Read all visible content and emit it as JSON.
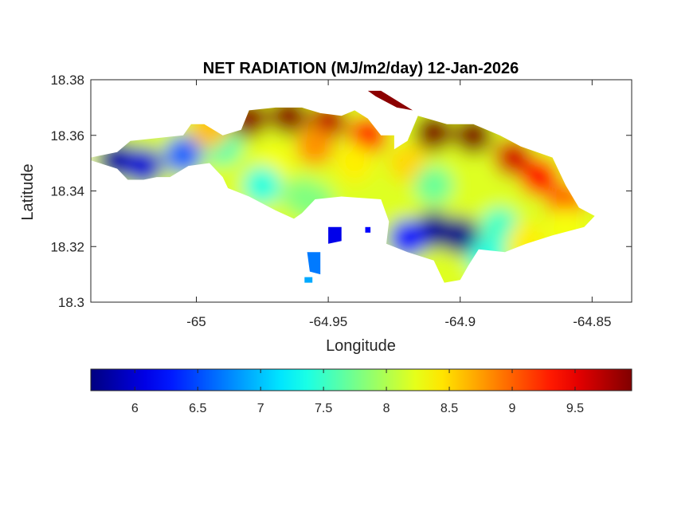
{
  "chart_data": {
    "type": "heatmap",
    "title": "NET RADIATION (MJ/m2/day) 12-Jan-2026",
    "xlabel": "Longitude",
    "ylabel": "Latitude",
    "xlim": [
      -65.04,
      -64.835
    ],
    "ylim": [
      18.3,
      18.38
    ],
    "xticks": [
      -65,
      -64.95,
      -64.9,
      -64.85
    ],
    "xtick_labels": [
      "-65",
      "-64.95",
      "-64.9",
      "-64.85"
    ],
    "yticks": [
      18.3,
      18.32,
      18.34,
      18.36,
      18.38
    ],
    "ytick_labels": [
      "18.3",
      "18.32",
      "18.34",
      "18.36",
      "18.38"
    ],
    "grid": false,
    "colormap": "jet",
    "colorbar": {
      "orientation": "horizontal",
      "placement": "bottom",
      "range": [
        5.65,
        9.95
      ],
      "ticks": [
        6,
        6.5,
        7,
        7.5,
        8,
        8.5,
        9,
        9.5
      ],
      "tick_labels": [
        "6",
        "6.5",
        "7",
        "7.5",
        "8",
        "8.5",
        "9",
        "9.5"
      ]
    },
    "field_hotspots": [
      {
        "lon": -65.03,
        "lat": 18.351,
        "value": 5.8
      },
      {
        "lon": -65.02,
        "lat": 18.349,
        "value": 6.0
      },
      {
        "lon": -65.005,
        "lat": 18.353,
        "value": 6.6
      },
      {
        "lon": -64.99,
        "lat": 18.356,
        "value": 7.6
      },
      {
        "lon": -64.995,
        "lat": 18.362,
        "value": 8.6
      },
      {
        "lon": -64.98,
        "lat": 18.366,
        "value": 9.9
      },
      {
        "lon": -64.965,
        "lat": 18.367,
        "value": 9.9
      },
      {
        "lon": -64.95,
        "lat": 18.365,
        "value": 9.7
      },
      {
        "lon": -64.935,
        "lat": 18.36,
        "value": 9.3
      },
      {
        "lon": -64.91,
        "lat": 18.361,
        "value": 9.95
      },
      {
        "lon": -64.895,
        "lat": 18.36,
        "value": 9.95
      },
      {
        "lon": -64.88,
        "lat": 18.352,
        "value": 9.6
      },
      {
        "lon": -64.87,
        "lat": 18.345,
        "value": 9.4
      },
      {
        "lon": -64.86,
        "lat": 18.336,
        "value": 9.0
      },
      {
        "lon": -64.97,
        "lat": 18.35,
        "value": 8.3
      },
      {
        "lon": -64.955,
        "lat": 18.356,
        "value": 8.8
      },
      {
        "lon": -64.975,
        "lat": 18.342,
        "value": 7.4
      },
      {
        "lon": -64.96,
        "lat": 18.338,
        "value": 7.8
      },
      {
        "lon": -64.94,
        "lat": 18.35,
        "value": 8.4
      },
      {
        "lon": -64.92,
        "lat": 18.35,
        "value": 8.5
      },
      {
        "lon": -64.91,
        "lat": 18.342,
        "value": 7.7
      },
      {
        "lon": -64.91,
        "lat": 18.326,
        "value": 5.7
      },
      {
        "lon": -64.9,
        "lat": 18.324,
        "value": 5.7
      },
      {
        "lon": -64.92,
        "lat": 18.323,
        "value": 6.2
      },
      {
        "lon": -64.885,
        "lat": 18.327,
        "value": 7.5
      },
      {
        "lon": -64.875,
        "lat": 18.322,
        "value": 8.4
      },
      {
        "lon": -64.86,
        "lat": 18.327,
        "value": 8.3
      },
      {
        "lon": -64.89,
        "lat": 18.316,
        "value": 7.4
      },
      {
        "lon": -64.94,
        "lat": 18.323,
        "value": 6.6
      },
      {
        "lon": -64.955,
        "lat": 18.317,
        "value": 6.5
      },
      {
        "lon": -64.955,
        "lat": 18.311,
        "value": 7.1
      },
      {
        "lon": -64.955,
        "lat": 18.336,
        "value": 7.8
      }
    ],
    "land_polygon": [
      [
        -65.04,
        18.352
      ],
      [
        -65.03,
        18.354
      ],
      [
        -65.025,
        18.358
      ],
      [
        -65.015,
        18.359
      ],
      [
        -65.005,
        18.36
      ],
      [
        -65.002,
        18.364
      ],
      [
        -64.997,
        18.364
      ],
      [
        -64.99,
        18.36
      ],
      [
        -64.983,
        18.362
      ],
      [
        -64.98,
        18.369
      ],
      [
        -64.97,
        18.37
      ],
      [
        -64.96,
        18.37
      ],
      [
        -64.953,
        18.368
      ],
      [
        -64.945,
        18.367
      ],
      [
        -64.94,
        18.369
      ],
      [
        -64.935,
        18.366
      ],
      [
        -64.93,
        18.36
      ],
      [
        -64.925,
        18.36
      ],
      [
        -64.925,
        18.355
      ],
      [
        -64.92,
        18.358
      ],
      [
        -64.916,
        18.367
      ],
      [
        -64.905,
        18.364
      ],
      [
        -64.895,
        18.364
      ],
      [
        -64.885,
        18.36
      ],
      [
        -64.877,
        18.356
      ],
      [
        -64.865,
        18.352
      ],
      [
        -64.86,
        18.342
      ],
      [
        -64.855,
        18.334
      ],
      [
        -64.849,
        18.331
      ],
      [
        -64.853,
        18.327
      ],
      [
        -64.865,
        18.324
      ],
      [
        -64.875,
        18.321
      ],
      [
        -64.883,
        18.318
      ],
      [
        -64.893,
        18.319
      ],
      [
        -64.897,
        18.313
      ],
      [
        -64.9,
        18.308
      ],
      [
        -64.906,
        18.307
      ],
      [
        -64.91,
        18.315
      ],
      [
        -64.92,
        18.318
      ],
      [
        -64.928,
        18.321
      ],
      [
        -64.927,
        18.329
      ],
      [
        -64.93,
        18.337
      ],
      [
        -64.945,
        18.338
      ],
      [
        -64.955,
        18.337
      ],
      [
        -64.96,
        18.332
      ],
      [
        -64.963,
        18.33
      ],
      [
        -64.97,
        18.333
      ],
      [
        -64.98,
        18.338
      ],
      [
        -64.988,
        18.341
      ],
      [
        -64.99,
        18.345
      ],
      [
        -64.995,
        18.35
      ],
      [
        -65.003,
        18.349
      ],
      [
        -65.01,
        18.345
      ],
      [
        -65.015,
        18.345
      ],
      [
        -65.02,
        18.344
      ],
      [
        -65.026,
        18.344
      ],
      [
        -65.03,
        18.348
      ],
      [
        -65.04,
        18.351
      ]
    ],
    "small_islands": [
      [
        [
          -64.935,
          18.376
        ],
        [
          -64.93,
          18.376
        ],
        [
          -64.918,
          18.369
        ],
        [
          -64.924,
          18.37
        ],
        [
          -64.932,
          18.374
        ]
      ],
      [
        [
          -64.95,
          18.327
        ],
        [
          -64.945,
          18.327
        ],
        [
          -64.945,
          18.322
        ],
        [
          -64.95,
          18.321
        ]
      ],
      [
        [
          -64.958,
          18.318
        ],
        [
          -64.953,
          18.318
        ],
        [
          -64.953,
          18.31
        ],
        [
          -64.957,
          18.311
        ]
      ],
      [
        [
          -64.959,
          18.309
        ],
        [
          -64.956,
          18.309
        ],
        [
          -64.956,
          18.307
        ],
        [
          -64.959,
          18.307
        ]
      ],
      [
        [
          -64.936,
          18.327
        ],
        [
          -64.934,
          18.327
        ],
        [
          -64.934,
          18.325
        ],
        [
          -64.936,
          18.325
        ]
      ]
    ]
  }
}
